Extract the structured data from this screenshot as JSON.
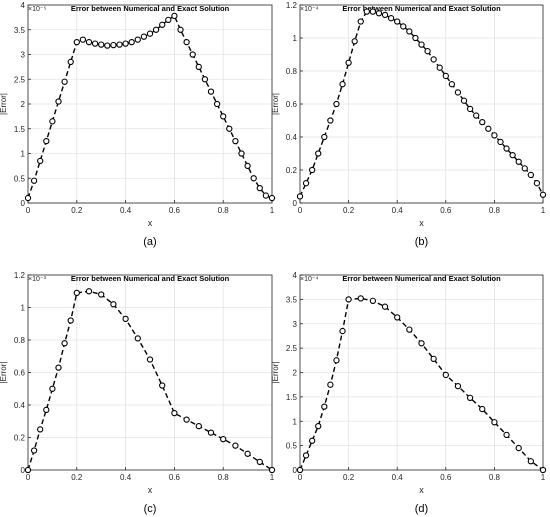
{
  "chart_data": [
    {
      "type": "line",
      "panel_label": "(a)",
      "title": "Error between Numerical and Exact Solution",
      "xlabel": "x",
      "ylabel": "|Error|",
      "exponent": "×10⁻⁵",
      "xlim": [
        0,
        1
      ],
      "ylim": [
        0,
        4
      ],
      "xticks": [
        "0",
        "0.2",
        "0.4",
        "0.6",
        "0.8",
        "1"
      ],
      "yticks": [
        "0",
        "0.5",
        "1",
        "1.5",
        "2",
        "2.5",
        "3",
        "3.5",
        "4"
      ],
      "grid": true,
      "x": [
        0,
        0.025,
        0.05,
        0.075,
        0.1,
        0.125,
        0.15,
        0.175,
        0.2,
        0.225,
        0.25,
        0.275,
        0.3,
        0.325,
        0.35,
        0.375,
        0.4,
        0.425,
        0.45,
        0.475,
        0.5,
        0.525,
        0.55,
        0.575,
        0.6,
        0.625,
        0.65,
        0.675,
        0.7,
        0.725,
        0.75,
        0.775,
        0.8,
        0.825,
        0.85,
        0.875,
        0.9,
        0.925,
        0.95,
        0.975,
        1
      ],
      "y": [
        0.1,
        0.45,
        0.85,
        1.25,
        1.65,
        2.05,
        2.45,
        2.85,
        3.25,
        3.3,
        3.25,
        3.22,
        3.2,
        3.18,
        3.19,
        3.2,
        3.22,
        3.25,
        3.3,
        3.36,
        3.42,
        3.5,
        3.6,
        3.7,
        3.78,
        3.5,
        3.25,
        3.0,
        2.75,
        2.5,
        2.25,
        2.0,
        1.75,
        1.5,
        1.25,
        1.0,
        0.75,
        0.5,
        0.3,
        0.15,
        0.1
      ]
    },
    {
      "type": "line",
      "panel_label": "(b)",
      "title": "Error between Numerical and Exact Solution",
      "xlabel": "x",
      "ylabel": "|Error|",
      "exponent": "×10⁻⁴",
      "xlim": [
        0,
        1
      ],
      "ylim": [
        0,
        1.2
      ],
      "xticks": [
        "0",
        "0.2",
        "0.4",
        "0.6",
        "0.8",
        "1"
      ],
      "yticks": [
        "0",
        "0.2",
        "0.4",
        "0.6",
        "0.8",
        "1",
        "1.2"
      ],
      "grid": true,
      "x": [
        0,
        0.025,
        0.05,
        0.075,
        0.1,
        0.125,
        0.15,
        0.175,
        0.2,
        0.225,
        0.25,
        0.275,
        0.3,
        0.325,
        0.35,
        0.375,
        0.4,
        0.425,
        0.45,
        0.475,
        0.5,
        0.525,
        0.55,
        0.575,
        0.6,
        0.625,
        0.65,
        0.675,
        0.7,
        0.725,
        0.75,
        0.775,
        0.8,
        0.825,
        0.85,
        0.875,
        0.9,
        0.925,
        0.95,
        0.975,
        1
      ],
      "y": [
        0.04,
        0.12,
        0.2,
        0.3,
        0.4,
        0.5,
        0.6,
        0.72,
        0.85,
        0.98,
        1.1,
        1.16,
        1.16,
        1.15,
        1.14,
        1.12,
        1.1,
        1.07,
        1.04,
        1.0,
        0.96,
        0.92,
        0.87,
        0.82,
        0.77,
        0.72,
        0.67,
        0.62,
        0.57,
        0.53,
        0.49,
        0.45,
        0.41,
        0.37,
        0.33,
        0.29,
        0.25,
        0.21,
        0.17,
        0.12,
        0.05
      ]
    },
    {
      "type": "line",
      "panel_label": "(c)",
      "title": "Error between Numerical and Exact Solution",
      "xlabel": "x",
      "ylabel": "|Error|",
      "exponent": "×10⁻³",
      "xlim": [
        0,
        1
      ],
      "ylim": [
        0,
        1.2
      ],
      "xticks": [
        "0",
        "0.2",
        "0.4",
        "0.6",
        "0.8",
        "1"
      ],
      "yticks": [
        "0",
        "0.2",
        "0.4",
        "0.6",
        "0.8",
        "1",
        "1.2"
      ],
      "grid": true,
      "x": [
        0,
        0.025,
        0.05,
        0.075,
        0.1,
        0.125,
        0.15,
        0.175,
        0.2,
        0.25,
        0.3,
        0.35,
        0.4,
        0.45,
        0.5,
        0.55,
        0.6,
        0.65,
        0.7,
        0.75,
        0.8,
        0.85,
        0.9,
        0.95,
        1
      ],
      "y": [
        0,
        0.12,
        0.25,
        0.37,
        0.5,
        0.63,
        0.78,
        0.92,
        1.09,
        1.1,
        1.08,
        1.02,
        0.93,
        0.81,
        0.68,
        0.52,
        0.35,
        0.31,
        0.27,
        0.23,
        0.19,
        0.15,
        0.1,
        0.05,
        0
      ]
    },
    {
      "type": "line",
      "panel_label": "(d)",
      "title": "Error between Numerical and Exact Solution",
      "xlabel": "x",
      "ylabel": "|Error|",
      "exponent": "×10⁻⁴",
      "xlim": [
        0,
        1
      ],
      "ylim": [
        0,
        4
      ],
      "xticks": [
        "0",
        "0.2",
        "0.4",
        "0.6",
        "0.8",
        "1"
      ],
      "yticks": [
        "0",
        "0.5",
        "1",
        "1.5",
        "2",
        "2.5",
        "3",
        "3.5",
        "4"
      ],
      "grid": true,
      "x": [
        0,
        0.025,
        0.05,
        0.075,
        0.1,
        0.125,
        0.15,
        0.175,
        0.2,
        0.25,
        0.3,
        0.35,
        0.4,
        0.45,
        0.5,
        0.55,
        0.6,
        0.65,
        0.7,
        0.75,
        0.8,
        0.85,
        0.9,
        0.95,
        1
      ],
      "y": [
        0,
        0.3,
        0.6,
        0.9,
        1.3,
        1.75,
        2.25,
        2.85,
        3.5,
        3.52,
        3.47,
        3.35,
        3.13,
        2.88,
        2.6,
        2.28,
        1.95,
        1.72,
        1.48,
        1.25,
        0.98,
        0.72,
        0.45,
        0.18,
        0
      ]
    }
  ]
}
